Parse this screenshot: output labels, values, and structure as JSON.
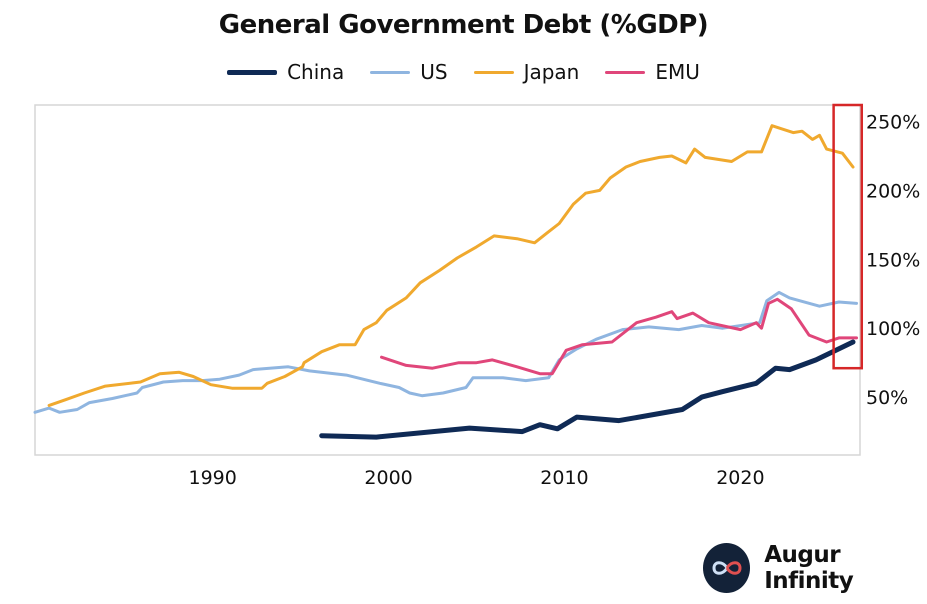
{
  "chart_data": {
    "type": "line",
    "title": "General Government Debt (%GDP)",
    "xlabel": "",
    "ylabel": "",
    "xlim": [
      1979.9,
      2026.8
    ],
    "ylim": [
      8,
      262
    ],
    "x_ticks": [
      1990,
      2000,
      2010,
      2020
    ],
    "x_tick_labels": [
      "1990",
      "2000",
      "2010",
      "2020"
    ],
    "y_ticks": [
      50,
      100,
      150,
      200,
      250
    ],
    "y_tick_labels": [
      "50%",
      "100%",
      "150%",
      "200%",
      "250%"
    ],
    "y_axis_side": "right",
    "grid": false,
    "legend_position": "top",
    "highlight_box": {
      "x_range": [
        2025.3,
        2026.9
      ],
      "y_range": [
        71,
        262
      ],
      "color": "#d62728"
    },
    "series": [
      {
        "name": "China",
        "color": "#0f2a55",
        "x": [
          1996.2,
          1999.3,
          2004.6,
          2007.6,
          2008.6,
          2009.6,
          2010.7,
          2013.1,
          2016.7,
          2017.8,
          2019.0,
          2020.9,
          2022.0,
          2022.8,
          2024.3,
          2026.4
        ],
        "y": [
          22,
          21,
          27.5,
          25,
          30,
          27,
          35.5,
          33,
          41,
          50,
          54,
          60,
          71,
          70,
          77,
          90
        ]
      },
      {
        "name": "US",
        "color": "#8fb5e0",
        "x": [
          1979.9,
          1980.7,
          1981.3,
          1982.3,
          1983.0,
          1984.3,
          1985.7,
          1986.0,
          1987.2,
          1988.3,
          1989.4,
          1990.4,
          1991.5,
          1992.3,
          1994.3,
          1995.5,
          1997.6,
          1999.5,
          2000.6,
          2001.2,
          2001.9,
          2003.1,
          2004.4,
          2004.8,
          2006.5,
          2007.8,
          2009.1,
          2009.7,
          2010.7,
          2011.8,
          2013.3,
          2014.8,
          2016.5,
          2017.8,
          2019.0,
          2021.1,
          2021.5,
          2022.2,
          2022.8,
          2024.5,
          2025.6,
          2026.6
        ],
        "y": [
          39,
          42,
          39,
          41,
          46,
          49,
          53,
          57,
          61,
          62,
          62,
          63,
          66,
          70,
          72,
          69,
          66,
          60,
          57,
          53,
          51,
          53,
          57,
          64,
          64,
          62,
          64,
          77,
          85,
          92,
          99,
          101,
          99,
          102,
          100,
          104,
          120,
          126,
          122,
          116,
          119,
          118
        ]
      },
      {
        "name": "Japan",
        "color": "#f0a92e",
        "x": [
          1980.7,
          1981.6,
          1982.7,
          1983.9,
          1985.9,
          1987.0,
          1988.1,
          1988.9,
          1989.9,
          1991.1,
          1992.8,
          1993.1,
          1994.1,
          1995.1,
          1995.2,
          1996.2,
          1997.2,
          1998.1,
          1998.6,
          1999.3,
          1999.9,
          2001.0,
          2001.8,
          2002.9,
          2003.9,
          2005.0,
          2006.0,
          2007.3,
          2008.3,
          2009.0,
          2009.7,
          2010.5,
          2011.2,
          2012.0,
          2012.6,
          2013.5,
          2014.3,
          2015.4,
          2016.1,
          2016.9,
          2017.4,
          2018.0,
          2019.5,
          2020.4,
          2021.2,
          2021.8,
          2023.0,
          2023.5,
          2024.1,
          2024.5,
          2024.9,
          2025.8,
          2026.4
        ],
        "y": [
          44,
          48,
          53,
          58,
          61,
          67,
          68,
          65,
          59,
          56.5,
          56.5,
          60,
          65,
          72,
          75,
          83,
          88,
          88,
          99,
          104,
          113,
          122,
          133,
          142,
          151,
          159,
          167,
          165,
          162,
          169,
          176,
          190,
          198,
          200,
          209,
          217,
          221,
          224,
          225,
          220,
          230,
          224,
          221,
          228,
          228,
          247,
          242,
          243,
          237,
          240,
          230,
          227,
          217
        ]
      },
      {
        "name": "EMU",
        "color": "#e0467a",
        "x": [
          1999.6,
          2001.0,
          2002.5,
          2004.0,
          2005.0,
          2005.9,
          2007.3,
          2008.6,
          2009.3,
          2010.1,
          2011.0,
          2012.7,
          2014.1,
          2015.2,
          2016.1,
          2016.4,
          2017.3,
          2018.2,
          2020.0,
          2020.9,
          2021.2,
          2021.6,
          2022.1,
          2022.9,
          2023.9,
          2024.9,
          2025.6,
          2026.6
        ],
        "y": [
          79,
          73,
          71,
          75,
          75,
          77,
          72,
          67,
          67,
          84,
          88,
          90,
          104,
          108,
          112,
          107,
          111,
          104,
          99,
          104,
          100,
          118,
          121,
          114,
          95,
          90,
          93,
          93
        ]
      }
    ]
  },
  "branding": {
    "logo_text": "Augur Infinity"
  }
}
